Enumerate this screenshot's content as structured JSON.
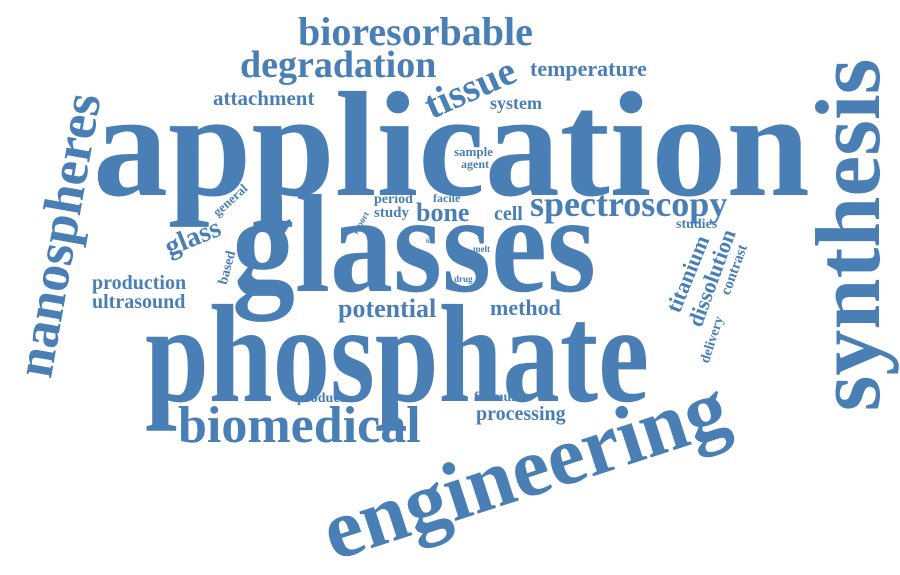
{
  "word_cloud": {
    "text_color": "#4a7fb5",
    "background_color": "#ffffff",
    "words": [
      "application",
      "glasses",
      "phosphate",
      "synthesis",
      "engineering",
      "nanospheres",
      "bioresorbable",
      "degradation",
      "tissue",
      "temperature",
      "attachment",
      "system",
      "spectroscopy",
      "biomedical",
      "potential",
      "method",
      "bone",
      "cell",
      "glass",
      "production",
      "ultrasound",
      "processing",
      "titanium",
      "dissolution",
      "contrast",
      "delivery",
      "studies",
      "sample",
      "agent",
      "period",
      "facile",
      "study",
      "general",
      "based",
      "report",
      "fit",
      "melt",
      "drug",
      "product",
      "formula"
    ]
  }
}
